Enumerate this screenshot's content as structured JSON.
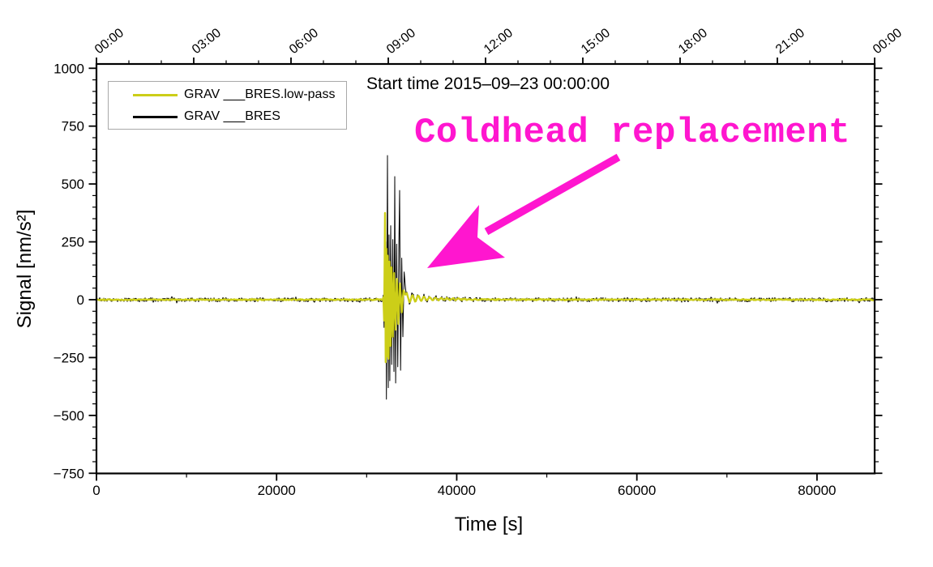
{
  "chart_data": {
    "type": "line",
    "title": "Start time 2015–09–23 00:00:00",
    "xlabel": "Time [s]",
    "ylabel": "Signal [nm/s²]",
    "xlim_s": [
      0,
      86400
    ],
    "ylim": [
      -750,
      1000
    ],
    "grid": false,
    "legend_position": "top-left",
    "x_axis": {
      "major_ticks": [
        0,
        20000,
        40000,
        60000,
        80000
      ],
      "tick_labels": [
        "0",
        "20000",
        "40000",
        "60000",
        "80000"
      ],
      "minor_step": 10000
    },
    "y_axis": {
      "tick_values": [
        1000,
        750,
        500,
        250,
        0,
        -250,
        -500,
        -750
      ],
      "tick_labels": [
        "1000",
        "750",
        "500",
        "250",
        "0",
        "−250",
        "−500",
        "−750"
      ],
      "major_step": 250,
      "minor_step": 50
    },
    "top_axis": {
      "major_step_s": 10800,
      "minor_step_s": 3600,
      "tick_labels": [
        "00:00",
        "03:00",
        "06:00",
        "09:00",
        "12:00",
        "15:00",
        "18:00",
        "21:00",
        "00:00"
      ]
    },
    "annotation": {
      "text": "Coldhead replacement",
      "color": "#ff16cf",
      "arrow": true
    },
    "event": {
      "description": "Coldhead replacement disturbance",
      "time_window_s": [
        31860,
        34290
      ],
      "peak_nm_s2": 623,
      "trough_nm_s2": -430
    },
    "legend": {
      "items": [
        {
          "label": "GRAV ___BRES.low-pass",
          "color": "#ccce18"
        },
        {
          "label": "GRAV ___BRES",
          "color": "#000000"
        }
      ]
    },
    "series": [
      {
        "name": "GRAV ___BRES",
        "role": "raw",
        "color": "#000000",
        "line_width": 1,
        "baseline_nm_s2": 0,
        "noise_amp_nm_s2": 9,
        "event_points": [
          [
            31860,
            20
          ],
          [
            31930,
            -120
          ],
          [
            32000,
            180
          ],
          [
            32060,
            -200
          ],
          [
            32120,
            250
          ],
          [
            32190,
            -430
          ],
          [
            32310,
            623
          ],
          [
            32400,
            -380
          ],
          [
            32480,
            280
          ],
          [
            32570,
            -350
          ],
          [
            32670,
            320
          ],
          [
            32780,
            -280
          ],
          [
            32900,
            260
          ],
          [
            33030,
            -310
          ],
          [
            33120,
            532
          ],
          [
            33220,
            -360
          ],
          [
            33330,
            240
          ],
          [
            33450,
            -290
          ],
          [
            33570,
            210
          ],
          [
            33660,
            472
          ],
          [
            33770,
            -305
          ],
          [
            33890,
            180
          ],
          [
            34020,
            -160
          ],
          [
            34160,
            120
          ],
          [
            34290,
            60
          ]
        ],
        "post_event": {
          "offset0": 9,
          "tau_off": 4200,
          "env0": 25,
          "tau": 2700,
          "period_s": 640
        }
      },
      {
        "name": "GRAV ___BRES.low-pass",
        "role": "low-pass",
        "color": "#ccce18",
        "line_width": 2.4,
        "baseline_nm_s2": 0,
        "noise_amp_nm_s2": 2.3,
        "event_points": [
          [
            31860,
            10
          ],
          [
            31940,
            -90
          ],
          [
            32040,
            375
          ],
          [
            32110,
            -270
          ],
          [
            32180,
            220
          ],
          [
            32260,
            -245
          ],
          [
            32350,
            190
          ],
          [
            32440,
            -255
          ],
          [
            32540,
            165
          ],
          [
            32650,
            -200
          ],
          [
            32770,
            140
          ],
          [
            32900,
            -160
          ],
          [
            33040,
            115
          ],
          [
            33190,
            -130
          ],
          [
            33350,
            90
          ],
          [
            33520,
            -105
          ],
          [
            33700,
            70
          ],
          [
            33890,
            -55
          ],
          [
            34090,
            40
          ],
          [
            34290,
            22
          ]
        ],
        "post_event": {
          "offset0": 8,
          "tau_off": 4200,
          "env0": 20,
          "tau": 2700,
          "period_s": 640
        }
      }
    ]
  }
}
